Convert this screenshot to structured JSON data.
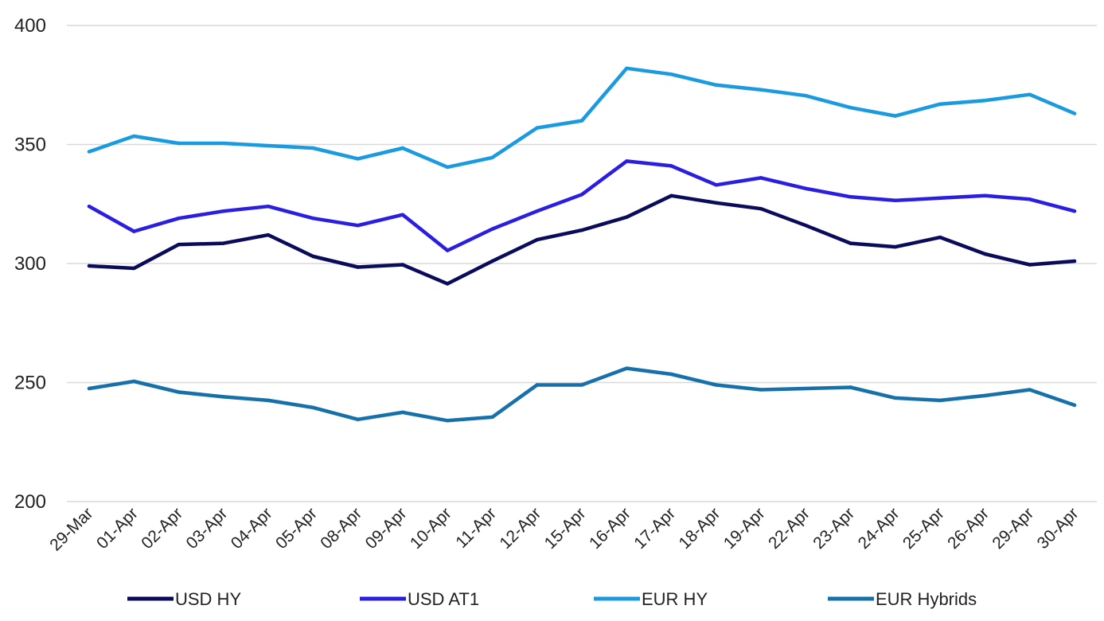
{
  "chart_data": {
    "type": "line",
    "title": "",
    "xlabel": "",
    "ylabel": "",
    "ylim": [
      200,
      400
    ],
    "yticks": [
      200,
      250,
      300,
      350,
      400
    ],
    "grid": true,
    "legend_position": "bottom",
    "categories": [
      "29-Mar",
      "01-Apr",
      "02-Apr",
      "03-Apr",
      "04-Apr",
      "05-Apr",
      "08-Apr",
      "09-Apr",
      "10-Apr",
      "11-Apr",
      "12-Apr",
      "15-Apr",
      "16-Apr",
      "17-Apr",
      "18-Apr",
      "19-Apr",
      "22-Apr",
      "23-Apr",
      "24-Apr",
      "25-Apr",
      "26-Apr",
      "29-Apr",
      "30-Apr"
    ],
    "series": [
      {
        "name": "USD HY",
        "color": "#0b0b5c",
        "values": [
          299,
          298,
          308,
          308.5,
          312,
          303,
          298.5,
          299.5,
          291.5,
          301,
          310,
          314,
          319.5,
          328.5,
          325.5,
          323,
          316,
          308.5,
          307,
          311,
          304,
          299.5,
          301
        ]
      },
      {
        "name": "USD AT1",
        "color": "#2a1fe0",
        "values": [
          324,
          313.5,
          319,
          322,
          324,
          319,
          316,
          320.5,
          305.5,
          314.5,
          322,
          329,
          343,
          341,
          333,
          336,
          331.5,
          328,
          326.5,
          327.5,
          328.5,
          327,
          322
        ]
      },
      {
        "name": "EUR HY",
        "color": "#1a9be0",
        "values": [
          347,
          353.5,
          350.5,
          350.5,
          349.5,
          348.5,
          344,
          348.5,
          340.5,
          344.5,
          357,
          360,
          382,
          379.5,
          375,
          373,
          370.5,
          365.5,
          362,
          367,
          368.5,
          371,
          363
        ]
      },
      {
        "name": "EUR Hybrids",
        "color": "#1670aa",
        "values": [
          247.5,
          250.5,
          246,
          244,
          242.5,
          239.5,
          234.5,
          237.5,
          234,
          235.5,
          249,
          249,
          256,
          253.5,
          249,
          247,
          247.5,
          248,
          243.5,
          242.5,
          244.5,
          247,
          240.5
        ]
      }
    ]
  }
}
